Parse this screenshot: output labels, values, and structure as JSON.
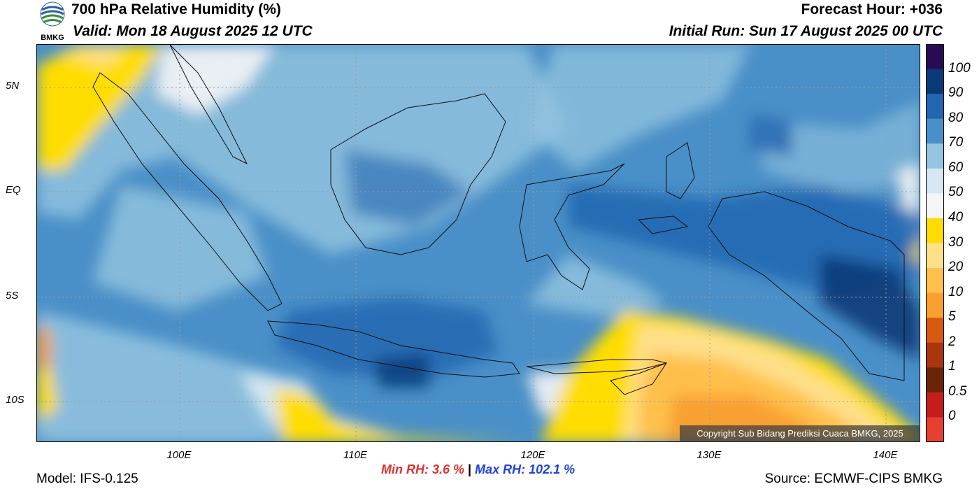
{
  "header": {
    "title": "700 hPa Relative Humidity (%)",
    "valid": "Valid: Mon 18 August 2025 12 UTC",
    "forecast_hour": "Forecast Hour: +036",
    "initial_run": "Initial Run: Sun 17 August 2025 00 UTC",
    "logo_text": "BMKG"
  },
  "map": {
    "lat_labels": [
      "5N",
      "EQ",
      "5S",
      "10S"
    ],
    "lon_labels": [
      "100E",
      "110E",
      "120E",
      "130E",
      "140E"
    ],
    "copyright": "Copyright Sub Bidang Prediksi Cuaca BMKG, 2025"
  },
  "colorbar": {
    "labels": [
      "100",
      "90",
      "80",
      "70",
      "60",
      "50",
      "40",
      "30",
      "20",
      "10",
      "5",
      "2",
      "1",
      "0.5",
      "0"
    ],
    "colors": [
      "#2a0a52",
      "#083a78",
      "#2166b0",
      "#4a90c8",
      "#94c4df",
      "#d7e8f2",
      "#f5f5f5",
      "#ffdd00",
      "#ffe08a",
      "#ffc04c",
      "#f9a030",
      "#d85a10",
      "#a8380c",
      "#6b2408",
      "#c51c1c",
      "#e84030"
    ]
  },
  "footer": {
    "min_rh": "Min RH:   3.6 %",
    "separator": "|",
    "max_rh": "Max RH: 102.1 %",
    "model": "Model: IFS-0.125",
    "source": "Source: ECMWF-CIPS BMKG"
  }
}
